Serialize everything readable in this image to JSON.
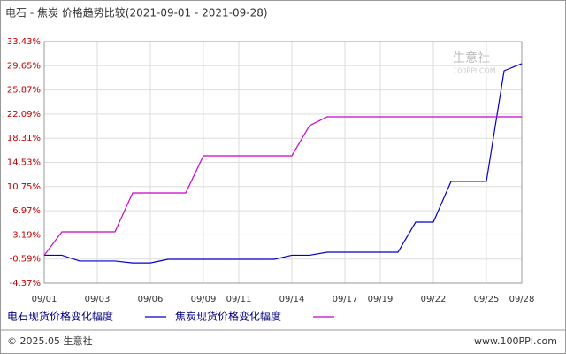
{
  "chart_data": {
    "type": "line",
    "title": "电石 - 焦炭 价格趋势比较(2021-09-01 - 2021-09-28)",
    "categories": [
      "09/01",
      null,
      null,
      "09/03",
      null,
      null,
      "09/06",
      null,
      null,
      "09/09",
      null,
      "09/11",
      null,
      null,
      "09/14",
      null,
      null,
      "09/17",
      null,
      "09/19",
      null,
      null,
      "09/22",
      null,
      null,
      "09/25",
      null,
      "09/28"
    ],
    "series": [
      {
        "name": "电石现货价格变化幅度",
        "color": "#0000cc",
        "values": [
          0,
          0,
          -0.9,
          -0.9,
          -0.9,
          -1.2,
          -1.2,
          -0.63,
          -0.63,
          -0.63,
          -0.63,
          -0.63,
          -0.63,
          -0.63,
          0,
          0,
          0.48,
          0.48,
          0.48,
          0.48,
          0.48,
          5.18,
          5.18,
          11.56,
          11.56,
          11.56,
          28.86,
          29.97
        ]
      },
      {
        "name": "焦炭现货价格变化幅度",
        "color": "#cc00cc",
        "values": [
          0,
          3.66,
          3.66,
          3.66,
          3.66,
          9.75,
          9.75,
          9.75,
          9.75,
          15.57,
          15.57,
          15.57,
          15.57,
          15.57,
          15.57,
          20.28,
          21.66,
          21.66,
          21.66,
          21.66,
          21.66,
          21.66,
          21.66,
          21.66,
          21.66,
          21.66,
          21.66,
          21.66
        ]
      }
    ],
    "ylim": [
      -4.37,
      33.43
    ],
    "yticks": [
      {
        "value": 33.43,
        "label": "33.43%"
      },
      {
        "value": 29.65,
        "label": "29.65%"
      },
      {
        "value": 25.87,
        "label": "25.87%"
      },
      {
        "value": 22.09,
        "label": "22.09%"
      },
      {
        "value": 18.31,
        "label": "18.31%"
      },
      {
        "value": 14.53,
        "label": "14.53%"
      },
      {
        "value": 10.75,
        "label": "10.75%"
      },
      {
        "value": 6.97,
        "label": "6.97%"
      },
      {
        "value": 3.19,
        "label": "3.19%"
      },
      {
        "value": -0.59,
        "label": "-0.59%"
      },
      {
        "value": -4.37,
        "label": "-4.37%"
      }
    ],
    "grid": true,
    "watermark": [
      "生意社",
      "100PPI.COM"
    ],
    "footer": {
      "left": "© 2025.05 生意社",
      "right": "www.100PPI.com"
    }
  }
}
